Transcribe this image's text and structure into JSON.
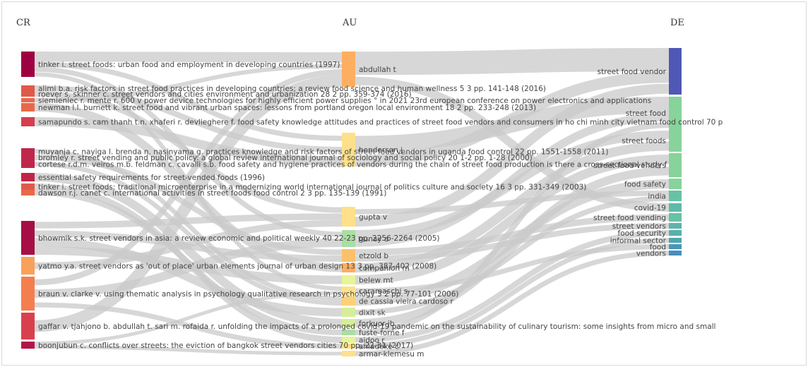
{
  "columns": [
    {
      "key": "CR",
      "label": "CR"
    },
    {
      "key": "AU",
      "label": "AU"
    },
    {
      "key": "DE",
      "label": "DE"
    }
  ],
  "cr_nodes": [
    {
      "id": "cr-1",
      "label": "tinker i. street foods: urban food and employment in developing countries (1997)",
      "color": "#9e0142"
    },
    {
      "id": "cr-2",
      "label": "alimi b.a. risk factors in street food practices in developing countries: a review food science and human wellness 5 3 pp. 141-148 (2016)",
      "color": "#e05a4a"
    },
    {
      "id": "cr-3",
      "label": "roever s. skinner c. street vendors and cities environment and urbanization 28 2 pp. 359-374 (2016)",
      "color": "#e05a4a"
    },
    {
      "id": "cr-4",
      "label": "siemieniec r. mente r. 600 v power device technologies for highly efficient power supplies ° in 2021 23rd european conference on power electronics and applications",
      "color": "#e8694a"
    },
    {
      "id": "cr-5",
      "label": "newman l.l. burnett k. street food and vibrant urban spaces: lessons from portland oregon local environment 18 2 pp. 233-248 (2013)",
      "color": "#e8694a"
    },
    {
      "id": "cr-6",
      "label": "samapundo s. cam thanh t.n. xhaferi r. devlieghere f. food safety knowledge attitudes and practices of street food vendors and consumers in ho chi minh city vietnam food control 70 p",
      "color": "#d53e4f"
    },
    {
      "id": "cr-7",
      "label": "muyanja c. nayiga l. brenda n. nasinyama g. practices knowledge and risk factors of street food vendors in uganda food control 22 pp. 1551-1558 (2011)",
      "color": "#c0264a"
    },
    {
      "id": "cr-8",
      "label": "bromley r. street vending and public policy: a global review international journal of sociology and social policy 20 1-2 pp. 1-28 (2000)",
      "color": "#c0264a"
    },
    {
      "id": "cr-9",
      "label": "cortese r.d.m. veiros m.b. feldman c. cavalli s.b. food safety and hygiene practices of vendors during the chain of street food production is there a cross-sectional study f",
      "color": "#c0264a"
    },
    {
      "id": "cr-10",
      "label": "essential safety requirements for street-vended foods (1996)",
      "color": "#c0264a"
    },
    {
      "id": "cr-11",
      "label": "tinker i. street foods: traditional microenterprise in a modernizing world international journal of politics culture and society 16 3 pp. 331-349 (2003)",
      "color": "#e05a4a"
    },
    {
      "id": "cr-12",
      "label": "dawson r.j. canet c. international activities in street foods food control 2 3 pp. 135-139 (1991)",
      "color": "#e8694a"
    },
    {
      "id": "cr-13",
      "label": "bhowmik s.k. street vendors in asia: a review economic and political weekly 40 22-23 pp. 2256-2264 (2005)",
      "color": "#a50f45"
    },
    {
      "id": "cr-14",
      "label": "yatmo y.a. street vendors as 'out of place' urban elements journal of urban design 13 3 pp. 387-402 (2008)",
      "color": "#f8a15a"
    },
    {
      "id": "cr-15",
      "label": "braun v. clarke v. using thematic analysis in psychology qualitative research in psychology 3 2 pp. 77-101 (2006)",
      "color": "#f47e4e"
    },
    {
      "id": "cr-16",
      "label": "gaffar v. tjahjono b. abdullah t. sari m. rofaida r. unfolding the impacts of a prolonged covid-19 pandemic on the sustainability of culinary tourism: some insights from micro and small",
      "color": "#d9404e"
    },
    {
      "id": "cr-17",
      "label": "boonjubun c. conflicts over streets: the eviction of bangkok street vendors cities 70 pp. 22-31 (2017)",
      "color": "#b31548"
    }
  ],
  "au_nodes": [
    {
      "id": "au-1",
      "label": "abdullah t",
      "color": "#fdae61"
    },
    {
      "id": "au-2",
      "label": "henderson j",
      "color": "#fee08b"
    },
    {
      "id": "au-3",
      "label": "gupta v",
      "color": "#fee08b"
    },
    {
      "id": "au-4",
      "label": "gunay a",
      "color": "#abdda4"
    },
    {
      "id": "au-5",
      "label": "etzold b",
      "color": "#fdc06a"
    },
    {
      "id": "au-6",
      "label": "companion m",
      "color": "#fdae61"
    },
    {
      "id": "au-7",
      "label": "belew mt",
      "color": "#e6f598"
    },
    {
      "id": "au-8",
      "label": "caramaschi s",
      "color": "#fee08b"
    },
    {
      "id": "au-9",
      "label": "de cassia vieira cardoso r",
      "color": "#fdd077"
    },
    {
      "id": "au-10",
      "label": "dixit sk",
      "color": "#d6ee9b"
    },
    {
      "id": "au-11",
      "label": "forkuor jb",
      "color": "#d6ee9b"
    },
    {
      "id": "au-12",
      "label": "fuste-forne f",
      "color": "#abdda4"
    },
    {
      "id": "au-13",
      "label": "aidoo r",
      "color": "#e6f598"
    },
    {
      "id": "au-14",
      "label": "ahiadeke c",
      "color": "#fee08b"
    },
    {
      "id": "au-15",
      "label": "armar-klemesu m",
      "color": "#fee08b"
    }
  ],
  "de_nodes": [
    {
      "id": "de-1",
      "label": "street food vendor",
      "color": "#5058b5"
    },
    {
      "id": "de-2",
      "label": "street food",
      "color": "#87d39b"
    },
    {
      "id": "de-3",
      "label": "street foods",
      "color": "#87d39b"
    },
    {
      "id": "de-4",
      "label": "street food vendors",
      "color": "#87d39b"
    },
    {
      "id": "de-5",
      "label": "food safety",
      "color": "#87d39b"
    },
    {
      "id": "de-6",
      "label": "india",
      "color": "#66c2a5"
    },
    {
      "id": "de-7",
      "label": "covid-19",
      "color": "#5fbaa8"
    },
    {
      "id": "de-8",
      "label": "street food vending",
      "color": "#66c2a5"
    },
    {
      "id": "de-9",
      "label": "street vendors",
      "color": "#5fb3aa"
    },
    {
      "id": "de-10",
      "label": "food security",
      "color": "#5ab0ab"
    },
    {
      "id": "de-11",
      "label": "informal sector",
      "color": "#4fa6b0"
    },
    {
      "id": "de-12",
      "label": "food",
      "color": "#4a97bb"
    },
    {
      "id": "de-13",
      "label": "vendors",
      "color": "#4a8dbd"
    }
  ],
  "link_color": "#c9c9c9",
  "links": [
    [
      "cr-1",
      "au-1",
      2
    ],
    [
      "cr-1",
      "au-2",
      1
    ],
    [
      "cr-1",
      "au-4",
      1
    ],
    [
      "cr-1",
      "au-8",
      1
    ],
    [
      "cr-2",
      "au-2",
      1
    ],
    [
      "cr-3",
      "au-3",
      1
    ],
    [
      "cr-4",
      "au-1",
      1
    ],
    [
      "cr-5",
      "au-6",
      1
    ],
    [
      "cr-6",
      "au-2",
      1
    ],
    [
      "cr-7",
      "au-9",
      1
    ],
    [
      "cr-8",
      "au-5",
      1
    ],
    [
      "cr-9",
      "au-9",
      1
    ],
    [
      "cr-10",
      "au-11",
      1
    ],
    [
      "cr-11",
      "au-13",
      1
    ],
    [
      "cr-12",
      "au-12",
      1
    ],
    [
      "cr-13",
      "au-3",
      1
    ],
    [
      "cr-13",
      "au-5",
      1
    ],
    [
      "cr-13",
      "au-10",
      1
    ],
    [
      "cr-13",
      "au-7",
      1
    ],
    [
      "cr-14",
      "au-3",
      1
    ],
    [
      "cr-15",
      "au-1",
      1
    ],
    [
      "cr-15",
      "au-4",
      1
    ],
    [
      "cr-15",
      "au-14",
      1
    ],
    [
      "cr-16",
      "au-1",
      2
    ],
    [
      "cr-17",
      "au-8",
      1
    ],
    [
      "cr-17",
      "au-15",
      1
    ],
    [
      "au-1",
      "de-1",
      2
    ],
    [
      "au-1",
      "de-7",
      1
    ],
    [
      "au-2",
      "de-2",
      2
    ],
    [
      "au-2",
      "de-1",
      1
    ],
    [
      "au-3",
      "de-6",
      1
    ],
    [
      "au-3",
      "de-1",
      1
    ],
    [
      "au-4",
      "de-3",
      1
    ],
    [
      "au-4",
      "de-2",
      1
    ],
    [
      "au-5",
      "de-8",
      1
    ],
    [
      "au-5",
      "de-9",
      1
    ],
    [
      "au-6",
      "de-3",
      1
    ],
    [
      "au-7",
      "de-4",
      1
    ],
    [
      "au-8",
      "de-12",
      1
    ],
    [
      "au-9",
      "de-5",
      1
    ],
    [
      "au-10",
      "de-6",
      1
    ],
    [
      "au-11",
      "de-4",
      1
    ],
    [
      "au-12",
      "de-2",
      1
    ],
    [
      "au-13",
      "de-10",
      1
    ],
    [
      "au-14",
      "de-11",
      1
    ],
    [
      "au-15",
      "de-13",
      1
    ]
  ]
}
